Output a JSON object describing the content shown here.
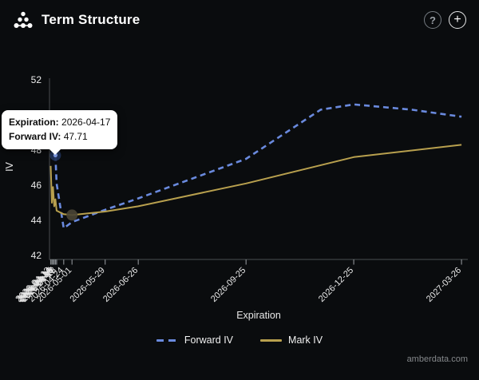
{
  "header": {
    "title": "Term Structure",
    "help_label": "?",
    "add_label": "+"
  },
  "tooltip": {
    "rows": [
      {
        "label": "Expiration:",
        "value": "2026-04-17"
      },
      {
        "label": "Forward IV:",
        "value": "47.71"
      }
    ]
  },
  "footer": {
    "watermark": "amberdata.com"
  },
  "colors": {
    "background": "#0a0c0e",
    "forward_iv": "#6a8ade",
    "mark_iv": "#b8a04e",
    "axis_line": "#3f4245",
    "tick_mark": "#84888c",
    "tick_text": "#e8e8e8"
  },
  "chart_data": {
    "type": "line",
    "title": "Term Structure",
    "xlabel": "Expiration",
    "ylabel": "IV",
    "ylim": [
      42,
      52
    ],
    "yticks": [
      42,
      44,
      46,
      48,
      50,
      52
    ],
    "grid": false,
    "legend_position": "bottom",
    "categories": [
      "2026-04-13",
      "2026-04-14",
      "2026-04-15",
      "2026-04-16",
      "2026-04-17",
      "2026-04-18",
      "2026-04-24",
      "2026-05-01",
      "2026-05-29",
      "2026-06-26",
      "2026-09-25",
      "2026-12-25",
      "2027-03-26"
    ],
    "series": [
      {
        "name": "Forward IV",
        "color": "#6a8ade",
        "dash": "7 5",
        "width": 2.6,
        "points": [
          [
            "2026-04-17",
            47.71
          ],
          [
            "2026-04-18",
            46.1
          ],
          [
            "2026-04-24",
            43.55
          ],
          [
            "2026-05-01",
            43.9
          ],
          [
            "2026-05-29",
            44.6
          ],
          [
            "2026-06-26",
            45.25
          ],
          [
            "2026-09-25",
            47.5
          ],
          [
            "2026-11-27",
            50.3
          ],
          [
            "2026-12-25",
            50.6
          ],
          [
            "2027-02-12",
            50.3
          ],
          [
            "2027-03-26",
            49.9
          ]
        ]
      },
      {
        "name": "Mark IV",
        "color": "#b8a04e",
        "dash": "",
        "width": 2,
        "points": [
          [
            "2026-04-13",
            47.1
          ],
          [
            "2026-04-14",
            45.0
          ],
          [
            "2026-04-15",
            45.9
          ],
          [
            "2026-04-16",
            44.8
          ],
          [
            "2026-04-17",
            45.2
          ],
          [
            "2026-04-18",
            44.55
          ],
          [
            "2026-04-24",
            44.35
          ],
          [
            "2026-05-01",
            44.3
          ],
          [
            "2026-05-29",
            44.5
          ],
          [
            "2026-06-26",
            44.8
          ],
          [
            "2026-09-25",
            46.1
          ],
          [
            "2026-12-25",
            47.6
          ],
          [
            "2027-03-26",
            48.3
          ]
        ]
      }
    ],
    "hover_highlights": [
      {
        "series": "Forward IV",
        "date": "2026-04-17",
        "value": 47.71,
        "halo_color": "#22345c",
        "dot_color": "#82a0ec"
      },
      {
        "series": "Mark IV",
        "date": "2026-05-01",
        "value": 44.3,
        "halo_color": "#4a4434",
        "dot_color": ""
      }
    ]
  }
}
